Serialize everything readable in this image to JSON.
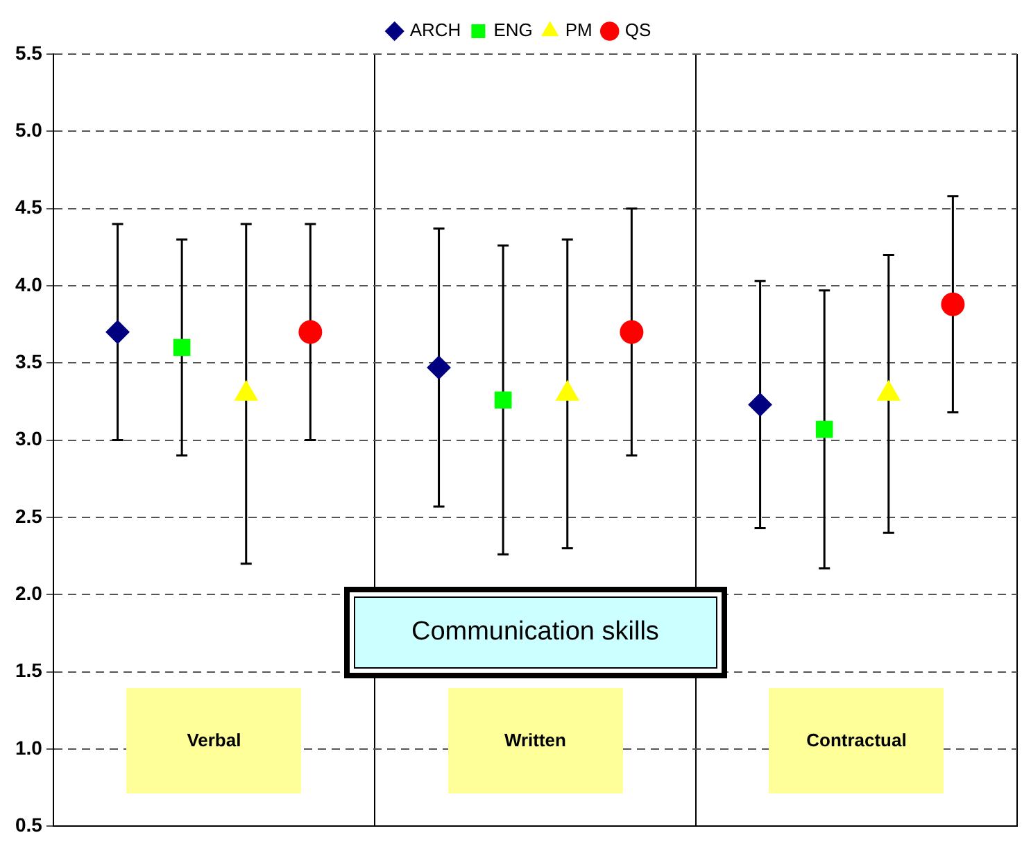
{
  "chart_data": {
    "type": "scatter",
    "title": "Communication skills",
    "categories": [
      "Verbal",
      "Written",
      "Contractual"
    ],
    "series": [
      {
        "name": "ARCH",
        "color": "#000080",
        "marker": "diamond",
        "values": [
          3.7,
          3.47,
          3.23
        ],
        "errors": [
          0.7,
          0.9,
          0.8
        ]
      },
      {
        "name": "ENG",
        "color": "#00ff00",
        "marker": "square",
        "values": [
          3.6,
          3.26,
          3.07
        ],
        "errors": [
          0.7,
          1.0,
          0.9
        ]
      },
      {
        "name": "PM",
        "color": "#ffff00",
        "marker": "triangle",
        "values": [
          3.3,
          3.3,
          3.3
        ],
        "errors": [
          1.1,
          1.0,
          0.9
        ]
      },
      {
        "name": "QS",
        "color": "#ff0000",
        "marker": "circle",
        "values": [
          3.7,
          3.7,
          3.88
        ],
        "errors": [
          0.7,
          0.8,
          0.7
        ]
      }
    ],
    "ylim": [
      0.5,
      5.5
    ],
    "yticks": [
      {
        "value": 0.5,
        "label": "0.5"
      },
      {
        "value": 1,
        "label": "1.0"
      },
      {
        "value": 1.5,
        "label": "1.5"
      },
      {
        "value": 2,
        "label": "2.0"
      },
      {
        "value": 2.5,
        "label": "2.5"
      },
      {
        "value": 3,
        "label": "3.0"
      },
      {
        "value": 3.5,
        "label": "3.5"
      },
      {
        "value": 4,
        "label": "4.0"
      },
      {
        "value": 4.5,
        "label": "4.5"
      },
      {
        "value": 5,
        "label": "5.0"
      },
      {
        "value": 5.5,
        "label": "5.5"
      }
    ],
    "grid": true,
    "legend": "top"
  }
}
